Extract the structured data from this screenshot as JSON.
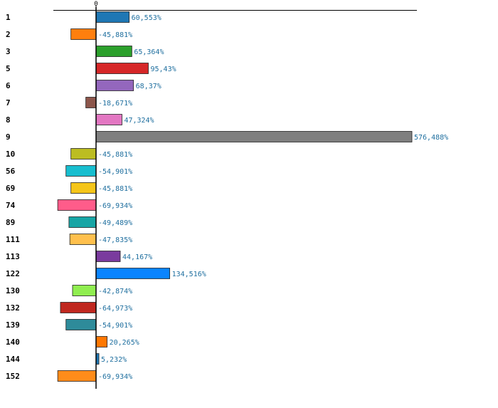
{
  "chart_data": {
    "type": "bar",
    "orientation": "horizontal",
    "categories": [
      "1",
      "2",
      "3",
      "5",
      "6",
      "7",
      "8",
      "9",
      "10",
      "56",
      "69",
      "74",
      "89",
      "111",
      "113",
      "122",
      "130",
      "132",
      "139",
      "140",
      "144",
      "152"
    ],
    "values": [
      60.553,
      -45.881,
      65.364,
      95.43,
      68.37,
      -18.671,
      47.324,
      576.488,
      -45.881,
      -54.901,
      -45.881,
      -69.934,
      -49.489,
      -47.835,
      44.167,
      134.516,
      -42.874,
      -64.973,
      -54.901,
      20.265,
      5.232,
      -69.934
    ],
    "value_labels": [
      "60,553%",
      "-45,881%",
      "65,364%",
      "95,43%",
      "68,37%",
      "-18,671%",
      "47,324%",
      "576,488%",
      "-45,881%",
      "-54,901%",
      "-45,881%",
      "-69,934%",
      "-49,489%",
      "-47,835%",
      "44,167%",
      "134,516%",
      "-42,874%",
      "-64,973%",
      "-54,901%",
      "20,265%",
      "5,232%",
      "-69,934%"
    ],
    "colors": [
      "#1f77b4",
      "#ff7f0e",
      "#2ca02c",
      "#d62728",
      "#9467bd",
      "#8c564b",
      "#e377c2",
      "#7f7f7f",
      "#bcbd22",
      "#17becf",
      "#f5c518",
      "#ff5c8a",
      "#17a5a5",
      "#ffc04d",
      "#7a3b9e",
      "#0a84ff",
      "#90ee50",
      "#c0281f",
      "#2e8b9a",
      "#ff7700",
      "#1f77b4",
      "#ff8c1a"
    ],
    "zero_tick_label": "0",
    "xlim": [
      -78,
      576.488
    ],
    "title": "",
    "xlabel": "",
    "ylabel": "",
    "grid": false,
    "legend": "none"
  }
}
